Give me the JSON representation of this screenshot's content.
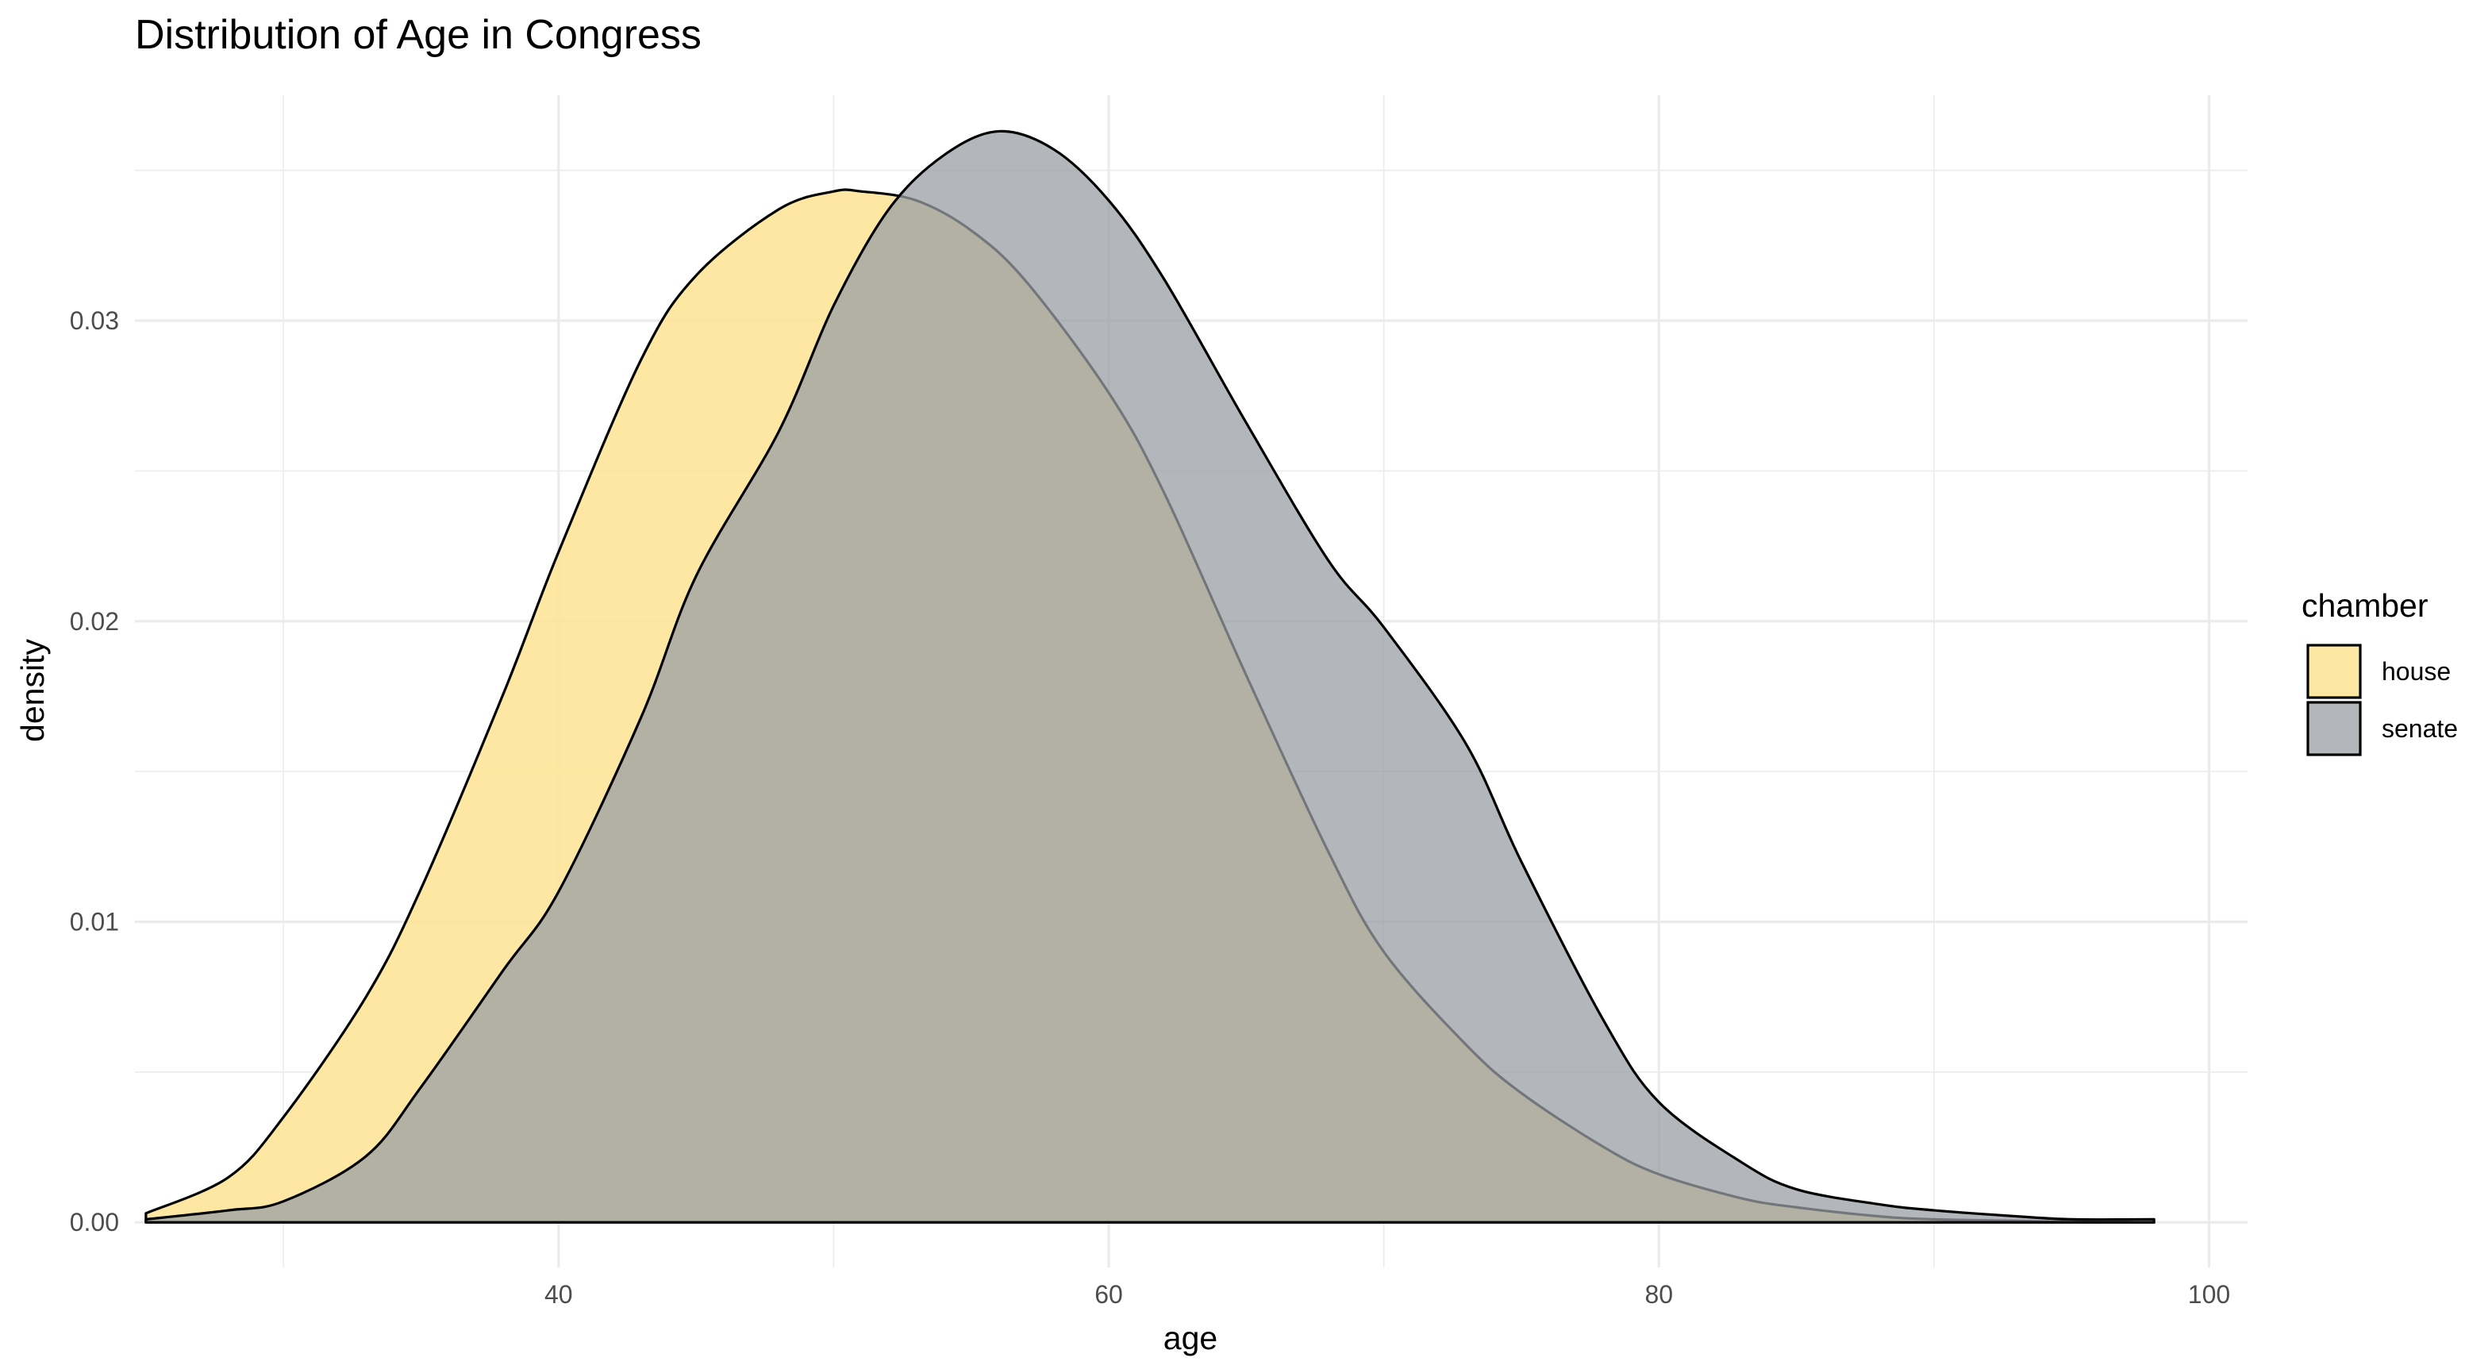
{
  "chart_data": {
    "type": "area",
    "title": "Distribution of Age in Congress",
    "xlabel": "age",
    "ylabel": "density",
    "xlim": [
      24.6,
      101.4
    ],
    "ylim": [
      -0.0015,
      0.0375
    ],
    "x_ticks": [
      40,
      60,
      80,
      100
    ],
    "x_tick_labels": [
      "40",
      "60",
      "80",
      "100"
    ],
    "y_ticks": [
      0.0,
      0.01,
      0.02,
      0.03
    ],
    "y_tick_labels": [
      "0.00",
      "0.01",
      "0.02",
      "0.03"
    ],
    "grid": true,
    "legend": {
      "title": "chamber",
      "position": "right"
    },
    "series": [
      {
        "name": "house",
        "color": "#fde498",
        "opacity": 0.9,
        "x": [
          25,
          28,
          30,
          33,
          35,
          38,
          40,
          43,
          45,
          48,
          50,
          51,
          53,
          55,
          57,
          60,
          62,
          65,
          68,
          70,
          73,
          75,
          78,
          80,
          83,
          85,
          88,
          90,
          93,
          95,
          98
        ],
        "y": [
          0.0003,
          0.0015,
          0.0035,
          0.0075,
          0.0111,
          0.0176,
          0.0223,
          0.0287,
          0.0315,
          0.0337,
          0.0343,
          0.0343,
          0.034,
          0.033,
          0.0313,
          0.0276,
          0.0243,
          0.0182,
          0.0123,
          0.009,
          0.0059,
          0.0043,
          0.0025,
          0.0016,
          0.0008,
          0.0005,
          0.0002,
          0.0001,
          5e-05,
          2e-05,
          0.0
        ]
      },
      {
        "name": "senate",
        "color": "#999fa4",
        "opacity": 0.75,
        "x": [
          25,
          28,
          30,
          33,
          35,
          38,
          40,
          43,
          45,
          48,
          50,
          52,
          54,
          56,
          58,
          60,
          62,
          65,
          68,
          70,
          73,
          75,
          78,
          80,
          83,
          85,
          88,
          90,
          93,
          95,
          98
        ],
        "y": [
          0.0001,
          0.0004,
          0.0007,
          0.0022,
          0.0045,
          0.0084,
          0.011,
          0.0168,
          0.0215,
          0.0263,
          0.0305,
          0.0337,
          0.0355,
          0.0363,
          0.0357,
          0.034,
          0.0314,
          0.0266,
          0.022,
          0.0198,
          0.0159,
          0.012,
          0.0067,
          0.004,
          0.002,
          0.0011,
          0.0006,
          0.0004,
          0.0002,
          0.0001,
          0.0001
        ]
      }
    ]
  }
}
